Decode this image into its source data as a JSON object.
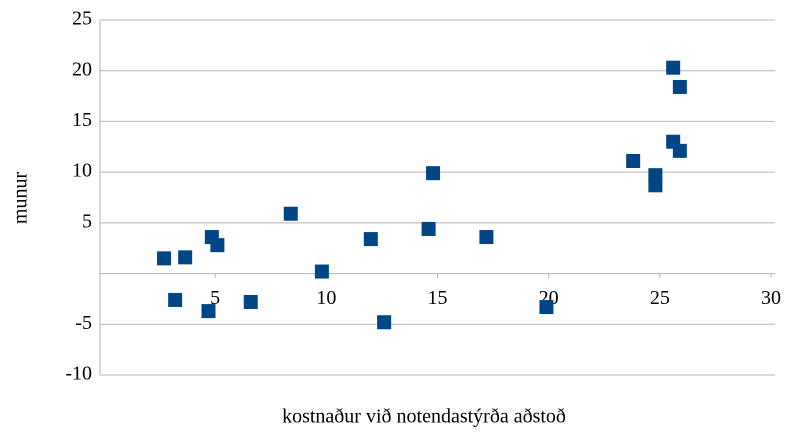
{
  "chart_data": {
    "type": "scatter",
    "xlabel": "kostnaður við notendastýrða aðstoð",
    "ylabel": "munur",
    "color": "#004586",
    "xlim": [
      0,
      30
    ],
    "xticks": [
      5,
      10,
      15,
      20,
      25,
      30
    ],
    "ylim": [
      -10,
      25
    ],
    "yticks": [
      -10,
      -5,
      5,
      10,
      15,
      20,
      25
    ],
    "grid": true,
    "x": [
      2.7,
      3.2,
      3.65,
      4.85,
      5.1,
      4.7,
      6.6,
      8.4,
      9.8,
      12.0,
      12.6,
      14.6,
      14.8,
      17.2,
      19.9,
      23.8,
      24.8,
      24.8,
      25.6,
      25.9,
      25.6,
      25.9
    ],
    "values": [
      1.5,
      -2.6,
      1.6,
      3.6,
      2.8,
      -3.7,
      -2.8,
      5.9,
      0.2,
      3.4,
      -4.8,
      4.4,
      9.9,
      3.6,
      -3.3,
      11.1,
      9.7,
      8.7,
      20.3,
      18.4,
      13.0,
      12.1
    ]
  }
}
